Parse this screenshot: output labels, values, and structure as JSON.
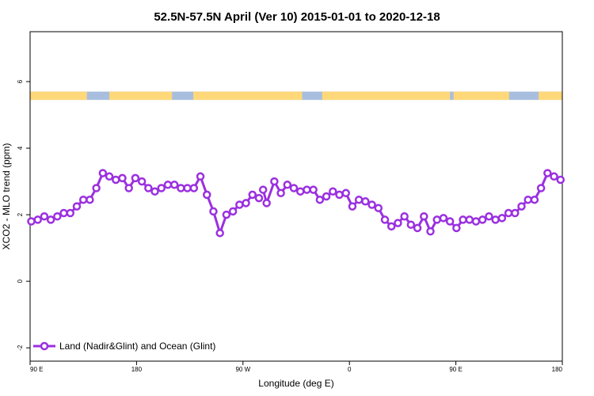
{
  "chart_data": {
    "type": "line",
    "title": "52.5N-57.5N April (Ver 10)   2015-01-01 to 2020-12-18",
    "xlabel": "Longitude (deg E)",
    "ylabel": "XCO2 - MLO trend (ppm)",
    "xlim": [
      90,
      450
    ],
    "ylim": [
      -2.4,
      7.5
    ],
    "x_ticks": [
      {
        "value": 90,
        "label": "90 E"
      },
      {
        "value": 180,
        "label": "180"
      },
      {
        "value": 270,
        "label": "90 W"
      },
      {
        "value": 360,
        "label": "0"
      },
      {
        "value": 450,
        "label": "90 E"
      },
      {
        "value": 540,
        "label": "180"
      }
    ],
    "y_ticks": [
      {
        "value": -2,
        "label": "-2"
      },
      {
        "value": 0,
        "label": "0"
      },
      {
        "value": 2,
        "label": "2"
      },
      {
        "value": 4,
        "label": "4"
      },
      {
        "value": 6,
        "label": "6"
      }
    ],
    "x_display_range": [
      90,
      540
    ],
    "grid": false,
    "legend_position": "bottom-left",
    "land_ocean_strip": {
      "y_range": [
        5.45,
        5.7
      ],
      "land_color": "#FFD87A",
      "ocean_color": "#A8BEDE",
      "land_segments": [
        [
          90,
          138
        ],
        [
          157,
          210
        ],
        [
          228,
          320
        ],
        [
          337,
          445
        ],
        [
          448,
          495
        ],
        [
          520,
          540
        ]
      ]
    },
    "series": [
      {
        "name": "Land (Nadir&Glint) and Ocean (Glint)",
        "color": "#9B30E0",
        "segments": [
          {
            "x": [
              91,
              96.5,
              102,
              107.5,
              113,
              118.5,
              124,
              129.5,
              135,
              140.5,
              146,
              151.5,
              157,
              162.5,
              168,
              173.5,
              179,
              184.5,
              190,
              195.5,
              201,
              206.5,
              212,
              217.5,
              223,
              228.5,
              234,
              239.5,
              245,
              250.5,
              256,
              261.5,
              267,
              272.5,
              278,
              283.5
            ],
            "y": [
              1.8,
              1.85,
              1.95,
              1.85,
              1.95,
              2.05,
              2.05,
              2.25,
              2.45,
              2.45,
              2.8,
              3.25,
              3.15,
              3.05,
              3.1,
              2.8,
              3.1,
              3.0,
              2.8,
              2.7,
              2.8,
              2.9,
              2.9,
              2.8,
              2.8,
              2.8,
              3.15,
              2.6,
              2.1,
              1.45,
              2.0,
              2.1,
              2.3,
              2.35,
              2.6,
              2.5
            ]
          },
          {
            "x": [
              287,
              290,
              296.5,
              302,
              307.5,
              313,
              318.5,
              324,
              329.5,
              335,
              340.5,
              346,
              351.5,
              357,
              362.5,
              368,
              373.5,
              379,
              384.5,
              390,
              395.5,
              401,
              406.5,
              412,
              417.5,
              423,
              428.5,
              434,
              439.5,
              445,
              450.5,
              456,
              461.5,
              467,
              472.5,
              478,
              483.5,
              489,
              494.5,
              500,
              505.5,
              511,
              516.5,
              522,
              527.5,
              533,
              538.5
            ],
            "y": [
              2.75,
              2.35,
              3.0,
              2.65,
              2.9,
              2.8,
              2.7,
              2.75,
              2.75,
              2.45,
              2.55,
              2.7,
              2.6,
              2.65,
              2.25,
              2.45,
              2.4,
              2.3,
              2.2,
              1.85,
              1.65,
              1.75,
              1.95,
              1.7,
              1.6,
              1.95,
              1.5,
              1.85,
              1.9,
              1.8,
              1.6,
              1.85,
              1.85,
              1.8,
              1.85,
              1.95,
              1.85,
              1.9,
              2.05,
              2.05,
              2.25,
              2.45,
              2.45,
              2.8,
              3.25,
              3.15,
              3.05
            ]
          }
        ]
      }
    ]
  }
}
